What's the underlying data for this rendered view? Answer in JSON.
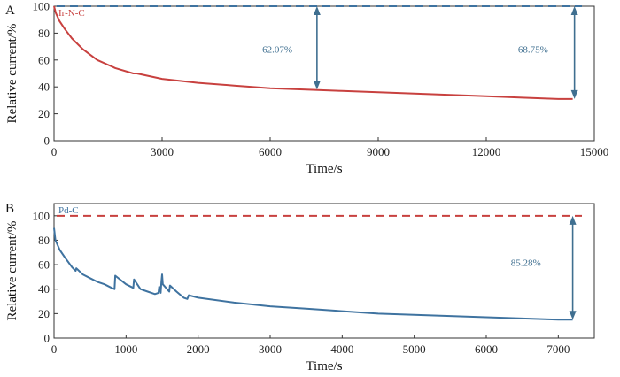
{
  "chart_data": [
    {
      "panel_label": "A",
      "type": "line",
      "legend": "Ir-N-C",
      "line_color": "#c8413f",
      "ref_color": "#3f73a0",
      "xlabel": "Time/s",
      "ylabel": "Relative current/%",
      "xlim": [
        0,
        15000
      ],
      "ylim": [
        0,
        100
      ],
      "xticks": [
        0,
        3000,
        6000,
        9000,
        12000,
        15000
      ],
      "yticks": [
        0,
        20,
        40,
        60,
        80,
        100
      ],
      "reference_line": 100,
      "series": [
        {
          "x": [
            0,
            50,
            150,
            300,
            500,
            800,
            1200,
            1700,
            2200,
            2300,
            3000,
            4000,
            5000,
            6000,
            7000,
            8000,
            9000,
            10000,
            11000,
            12000,
            13000,
            14000,
            14400
          ],
          "y": [
            100,
            95,
            89,
            83,
            76,
            68,
            60,
            54,
            50,
            50,
            46,
            43,
            41,
            39,
            38,
            37,
            36,
            35,
            34,
            33,
            32,
            31,
            31
          ]
        }
      ],
      "annotations": [
        {
          "text": "62.07%",
          "x_arrow": 7300,
          "y_from": 100,
          "y_to": 38,
          "label_x": 6200,
          "label_y": 68
        },
        {
          "text": "68.75%",
          "x_arrow": 14450,
          "y_from": 100,
          "y_to": 31,
          "label_x": 13300,
          "label_y": 68
        }
      ]
    },
    {
      "panel_label": "B",
      "type": "line",
      "legend": "Pd-C",
      "line_color": "#3f73a0",
      "ref_color": "#c8413f",
      "xlabel": "Time/s",
      "ylabel": "Relative current/%",
      "xlim": [
        0,
        7500
      ],
      "ylim": [
        0,
        110
      ],
      "xticks": [
        0,
        1000,
        2000,
        3000,
        4000,
        5000,
        6000,
        7000
      ],
      "yticks": [
        0,
        20,
        40,
        60,
        80,
        100
      ],
      "reference_line": 100,
      "series": [
        {
          "x": [
            0,
            20,
            80,
            150,
            250,
            300,
            310,
            400,
            500,
            600,
            700,
            800,
            840,
            850,
            1000,
            1100,
            1110,
            1200,
            1300,
            1400,
            1450,
            1460,
            1480,
            1490,
            1500,
            1510,
            1600,
            1610,
            1700,
            1800,
            1850,
            1870,
            2000,
            2500,
            3000,
            3500,
            4000,
            4500,
            5000,
            5500,
            6000,
            6500,
            7000,
            7200
          ],
          "y": [
            90,
            80,
            72,
            66,
            58,
            55,
            57,
            52,
            49,
            46,
            44,
            41,
            40,
            51,
            44,
            41,
            48,
            40,
            38,
            36,
            37,
            42,
            37,
            46,
            52,
            44,
            38,
            43,
            38,
            33,
            32,
            35,
            33,
            29,
            26,
            24,
            22,
            20,
            19,
            18,
            17,
            16,
            15,
            15
          ]
        }
      ],
      "annotations": [
        {
          "text": "85.28%",
          "x_arrow": 7200,
          "y_from": 100,
          "y_to": 15,
          "label_x": 6550,
          "label_y": 62
        }
      ]
    }
  ]
}
